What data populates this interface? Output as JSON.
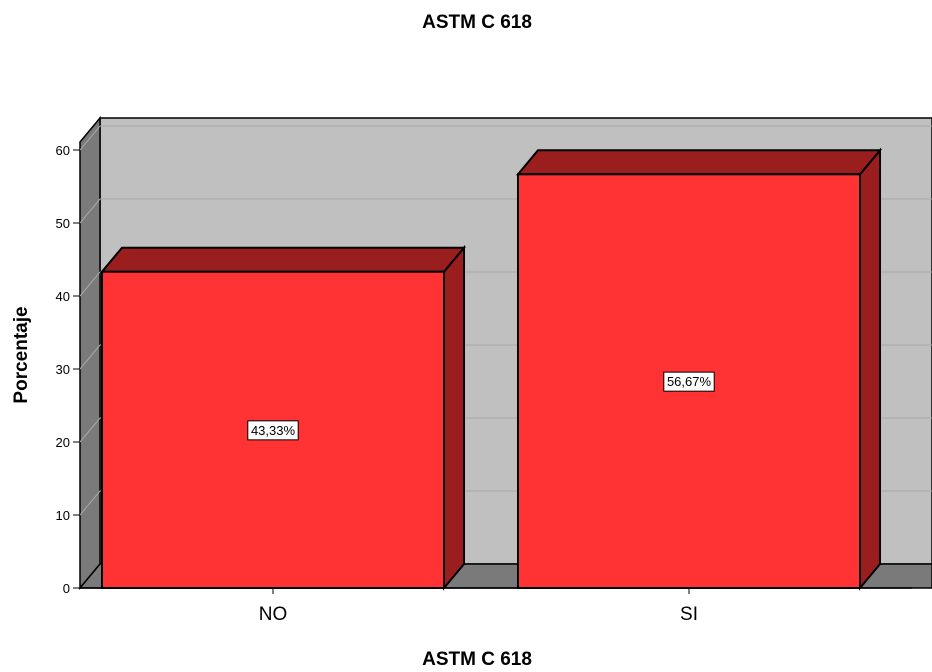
{
  "chart_data": {
    "type": "bar",
    "title": "ASTM C 618",
    "xlabel": "ASTM C 618",
    "ylabel": "Porcentaje",
    "categories": [
      "NO",
      "SI"
    ],
    "values": [
      43.33,
      56.67
    ],
    "data_labels": [
      "43,33%",
      "56,67%"
    ],
    "ylim": [
      0,
      60
    ],
    "yticks": [
      0,
      10,
      20,
      30,
      40,
      50,
      60
    ],
    "grid": true,
    "legend": "none",
    "style": "3d",
    "colors": {
      "bar_front": "#ff3333",
      "bar_top": "#9b1e1e",
      "bar_side": "#9b1e1e",
      "plot_back": "#c0c0c0",
      "plot_wall": "#7a7a7a",
      "gridline": "#a8a8a8"
    }
  }
}
